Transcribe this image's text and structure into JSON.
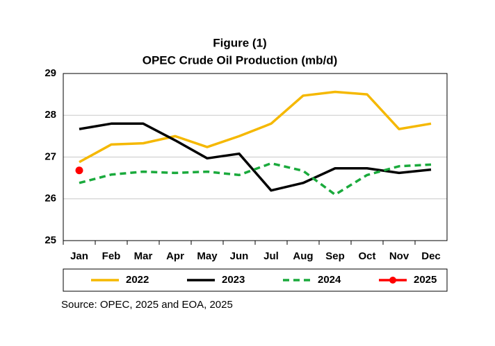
{
  "chart_data": {
    "type": "line",
    "title": "Figure (1)",
    "subtitle": "OPEC Crude Oil Production (mb/d)",
    "categories": [
      "Jan",
      "Feb",
      "Mar",
      "Apr",
      "May",
      "Jun",
      "Jul",
      "Aug",
      "Sep",
      "Oct",
      "Nov",
      "Dec"
    ],
    "series": [
      {
        "name": "2022",
        "color": "#f5b800",
        "style": "solid",
        "values": [
          26.88,
          27.3,
          27.33,
          27.5,
          27.24,
          27.5,
          27.8,
          28.47,
          28.56,
          28.5,
          27.67,
          27.8
        ]
      },
      {
        "name": "2023",
        "color": "#000000",
        "style": "solid",
        "values": [
          27.67,
          27.8,
          27.8,
          27.4,
          26.97,
          27.08,
          26.2,
          26.38,
          26.73,
          26.73,
          26.62,
          26.7
        ]
      },
      {
        "name": "2024",
        "color": "#1aaa3c",
        "style": "dashed",
        "values": [
          26.38,
          26.58,
          26.65,
          26.62,
          26.65,
          26.57,
          26.85,
          26.67,
          26.1,
          26.57,
          26.78,
          26.82
        ]
      },
      {
        "name": "2025",
        "color": "#ff0000",
        "style": "solid",
        "marker": "circle",
        "values": [
          26.68,
          null,
          null,
          null,
          null,
          null,
          null,
          null,
          null,
          null,
          null,
          null
        ]
      }
    ],
    "ylim": [
      25,
      29
    ],
    "yticks": [
      25,
      26,
      27,
      28,
      29
    ],
    "grid": true,
    "legend": "bottom",
    "source": "Source: OPEC, 2025 and EOA, 2025"
  }
}
